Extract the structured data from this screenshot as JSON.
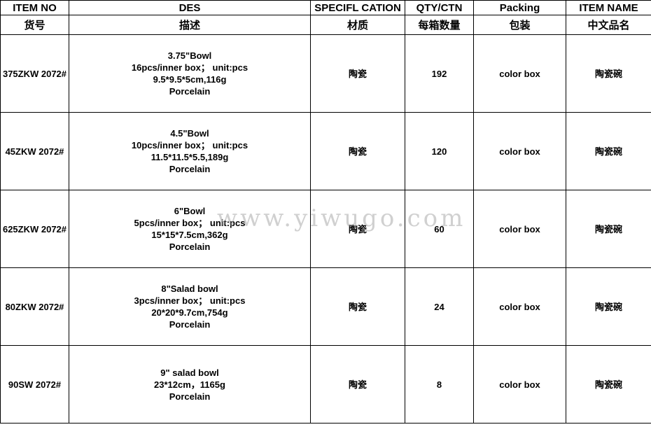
{
  "headers_en": [
    "ITEM NO",
    "DES",
    "SPECIFL CATION",
    "QTY/CTN",
    "Packing",
    "ITEM NAME"
  ],
  "headers_cn": [
    "货号",
    "描述",
    "材质",
    "每箱数量",
    "包装",
    "中文品名"
  ],
  "rows": [
    {
      "item_no": "375ZKW 2072#",
      "des": [
        "3.75\"Bowl",
        "16pcs/inner box； unit:pcs",
        "9.5*9.5*5cm,116g",
        "Porcelain"
      ],
      "material": "陶瓷",
      "qty": "192",
      "packing": "color box",
      "name_cn": "陶瓷碗"
    },
    {
      "item_no": "45ZKW 2072#",
      "des": [
        "4.5\"Bowl",
        "10pcs/inner box； unit:pcs",
        "11.5*11.5*5.5,189g",
        "Porcelain"
      ],
      "material": "陶瓷",
      "qty": "120",
      "packing": "color box",
      "name_cn": "陶瓷碗"
    },
    {
      "item_no": "625ZKW 2072#",
      "des": [
        "6\"Bowl",
        "5pcs/inner box； unit:pcs",
        "15*15*7.5cm,362g",
        "Porcelain"
      ],
      "material": "陶瓷",
      "qty": "60",
      "packing": "color box",
      "name_cn": "陶瓷碗"
    },
    {
      "item_no": "80ZKW 2072#",
      "des": [
        "8\"Salad bowl",
        "3pcs/inner box； unit:pcs",
        "20*20*9.7cm,754g",
        "Porcelain"
      ],
      "material": "陶瓷",
      "qty": "24",
      "packing": "color box",
      "name_cn": "陶瓷碗"
    },
    {
      "item_no": "90SW 2072#",
      "des": [
        "9\" salad bowl",
        "23*12cm，1165g",
        "Porcelain"
      ],
      "material": "陶瓷",
      "qty": "8",
      "packing": "color box",
      "name_cn": "陶瓷碗"
    }
  ],
  "watermark": "www.yiwugo.com"
}
